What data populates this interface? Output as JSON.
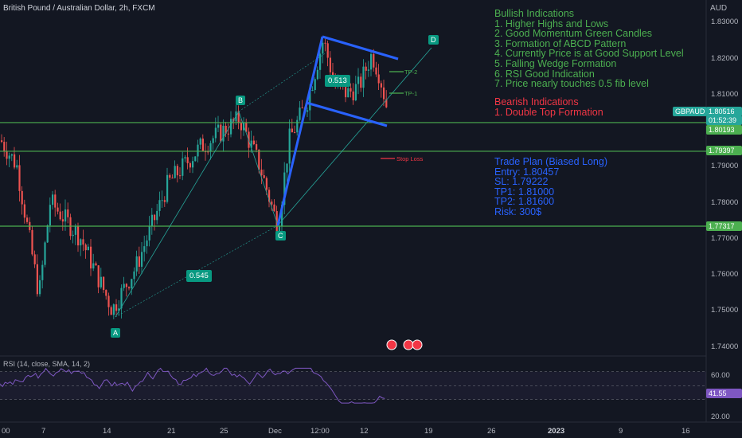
{
  "header": {
    "title": "British Pound / Australian Dollar, 2h, FXCM",
    "currency": "AUD"
  },
  "colors": {
    "background": "#131722",
    "up": "#26a69a",
    "down": "#ef5350",
    "level_line": "#4caf50",
    "pattern_line": "#2962ff",
    "bullish_text": "#4caf50",
    "bearish_text": "#f23645",
    "plan_text": "#2962ff",
    "rsi_line": "#7e57c2"
  },
  "price_axis": {
    "ticks": [
      "1.83000",
      "1.82000",
      "1.81000",
      "1.79000",
      "1.78000",
      "1.77000",
      "1.76000",
      "1.75000",
      "1.74000"
    ],
    "symbol_label": "GBPAUD",
    "current_price": "1.80516",
    "countdown": "01:52:39",
    "level_labels": [
      "1.80193",
      "1.79397",
      "1.77317"
    ]
  },
  "time_axis": {
    "ticks": [
      "00",
      "7",
      "14",
      "21",
      "25",
      "Dec",
      "12:00",
      "12",
      "19",
      "26",
      "2023",
      "9",
      "16"
    ]
  },
  "points": {
    "A": "A",
    "B": "B",
    "C": "C",
    "D": "D",
    "fib_left": "0.545",
    "fib_mid": "0.513"
  },
  "tp_labels": {
    "tp2": "TP-2",
    "tp1": "TP-1",
    "stop": "Stop Loss"
  },
  "bullish": {
    "title": "Bullish Indications",
    "items": [
      "1. Higher Highs and Lows",
      "2. Good Momentum Green Candles",
      "3. Formation of ABCD Pattern",
      "4. Currently Price is at Good Support Level",
      "5. Falling Wedge Formation",
      "6. RSI Good Indication",
      "7. Price nearly touches 0.5 fib level"
    ]
  },
  "bearish": {
    "title": "Bearish Indications",
    "items": [
      "1. Double Top Formation"
    ]
  },
  "plan": {
    "title": "Trade Plan (Biased Long)",
    "items": [
      "Entry: 1.80457",
      "SL: 1.79222",
      "TP1: 1.81000",
      "TP2: 1.81600",
      "Risk: 300$"
    ]
  },
  "rsi": {
    "label": "RSI (14, close, SMA, 14, 2)",
    "ticks": [
      "60.00",
      "20.00"
    ],
    "current": "41.55"
  }
}
